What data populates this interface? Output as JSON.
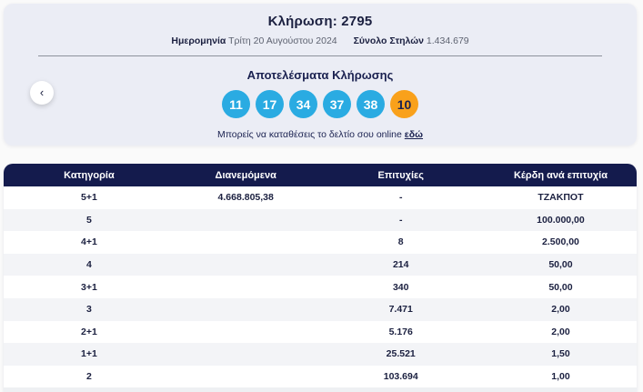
{
  "draw": {
    "title": "Κλήρωση: 2795",
    "date_label": "Ημερομηνία",
    "date_value": "Τρίτη 20 Αυγούστου 2024",
    "columns_label": "Σύνολο Στηλών",
    "columns_value": "1.434.679"
  },
  "results": {
    "title": "Αποτελέσματα Κλήρωσης",
    "numbers": [
      "11",
      "17",
      "34",
      "37",
      "38"
    ],
    "bonus_number": "10",
    "cta_text": "Μπορείς να καταθέσεις το δελτίο σου online",
    "cta_link_label": "εδώ"
  },
  "nav": {
    "prev_button_glyph": "‹"
  },
  "colors": {
    "number_ball": "#2aabe2",
    "bonus_ball": "#f9a11b",
    "bonus_ball_text": "#1a2150",
    "table_header_bg": "#141b4d",
    "card_bg": "#ebedf5"
  },
  "table": {
    "headers": [
      "Κατηγορία",
      "Διανεμόμενα",
      "Επιτυχίες",
      "Κέρδη ανά επιτυχία"
    ],
    "rows": [
      {
        "category": "5+1",
        "distributed": "4.668.805,38",
        "wins": "-",
        "prize": "ΤΖΑΚΠΟΤ"
      },
      {
        "category": "5",
        "distributed": "",
        "wins": "-",
        "prize": "100.000,00"
      },
      {
        "category": "4+1",
        "distributed": "",
        "wins": "8",
        "prize": "2.500,00"
      },
      {
        "category": "4",
        "distributed": "",
        "wins": "214",
        "prize": "50,00"
      },
      {
        "category": "3+1",
        "distributed": "",
        "wins": "340",
        "prize": "50,00"
      },
      {
        "category": "3",
        "distributed": "",
        "wins": "7.471",
        "prize": "2,00"
      },
      {
        "category": "2+1",
        "distributed": "",
        "wins": "5.176",
        "prize": "2,00"
      },
      {
        "category": "1+1",
        "distributed": "",
        "wins": "25.521",
        "prize": "1,50"
      },
      {
        "category": "2",
        "distributed": "",
        "wins": "103.694",
        "prize": "1,00"
      }
    ]
  }
}
